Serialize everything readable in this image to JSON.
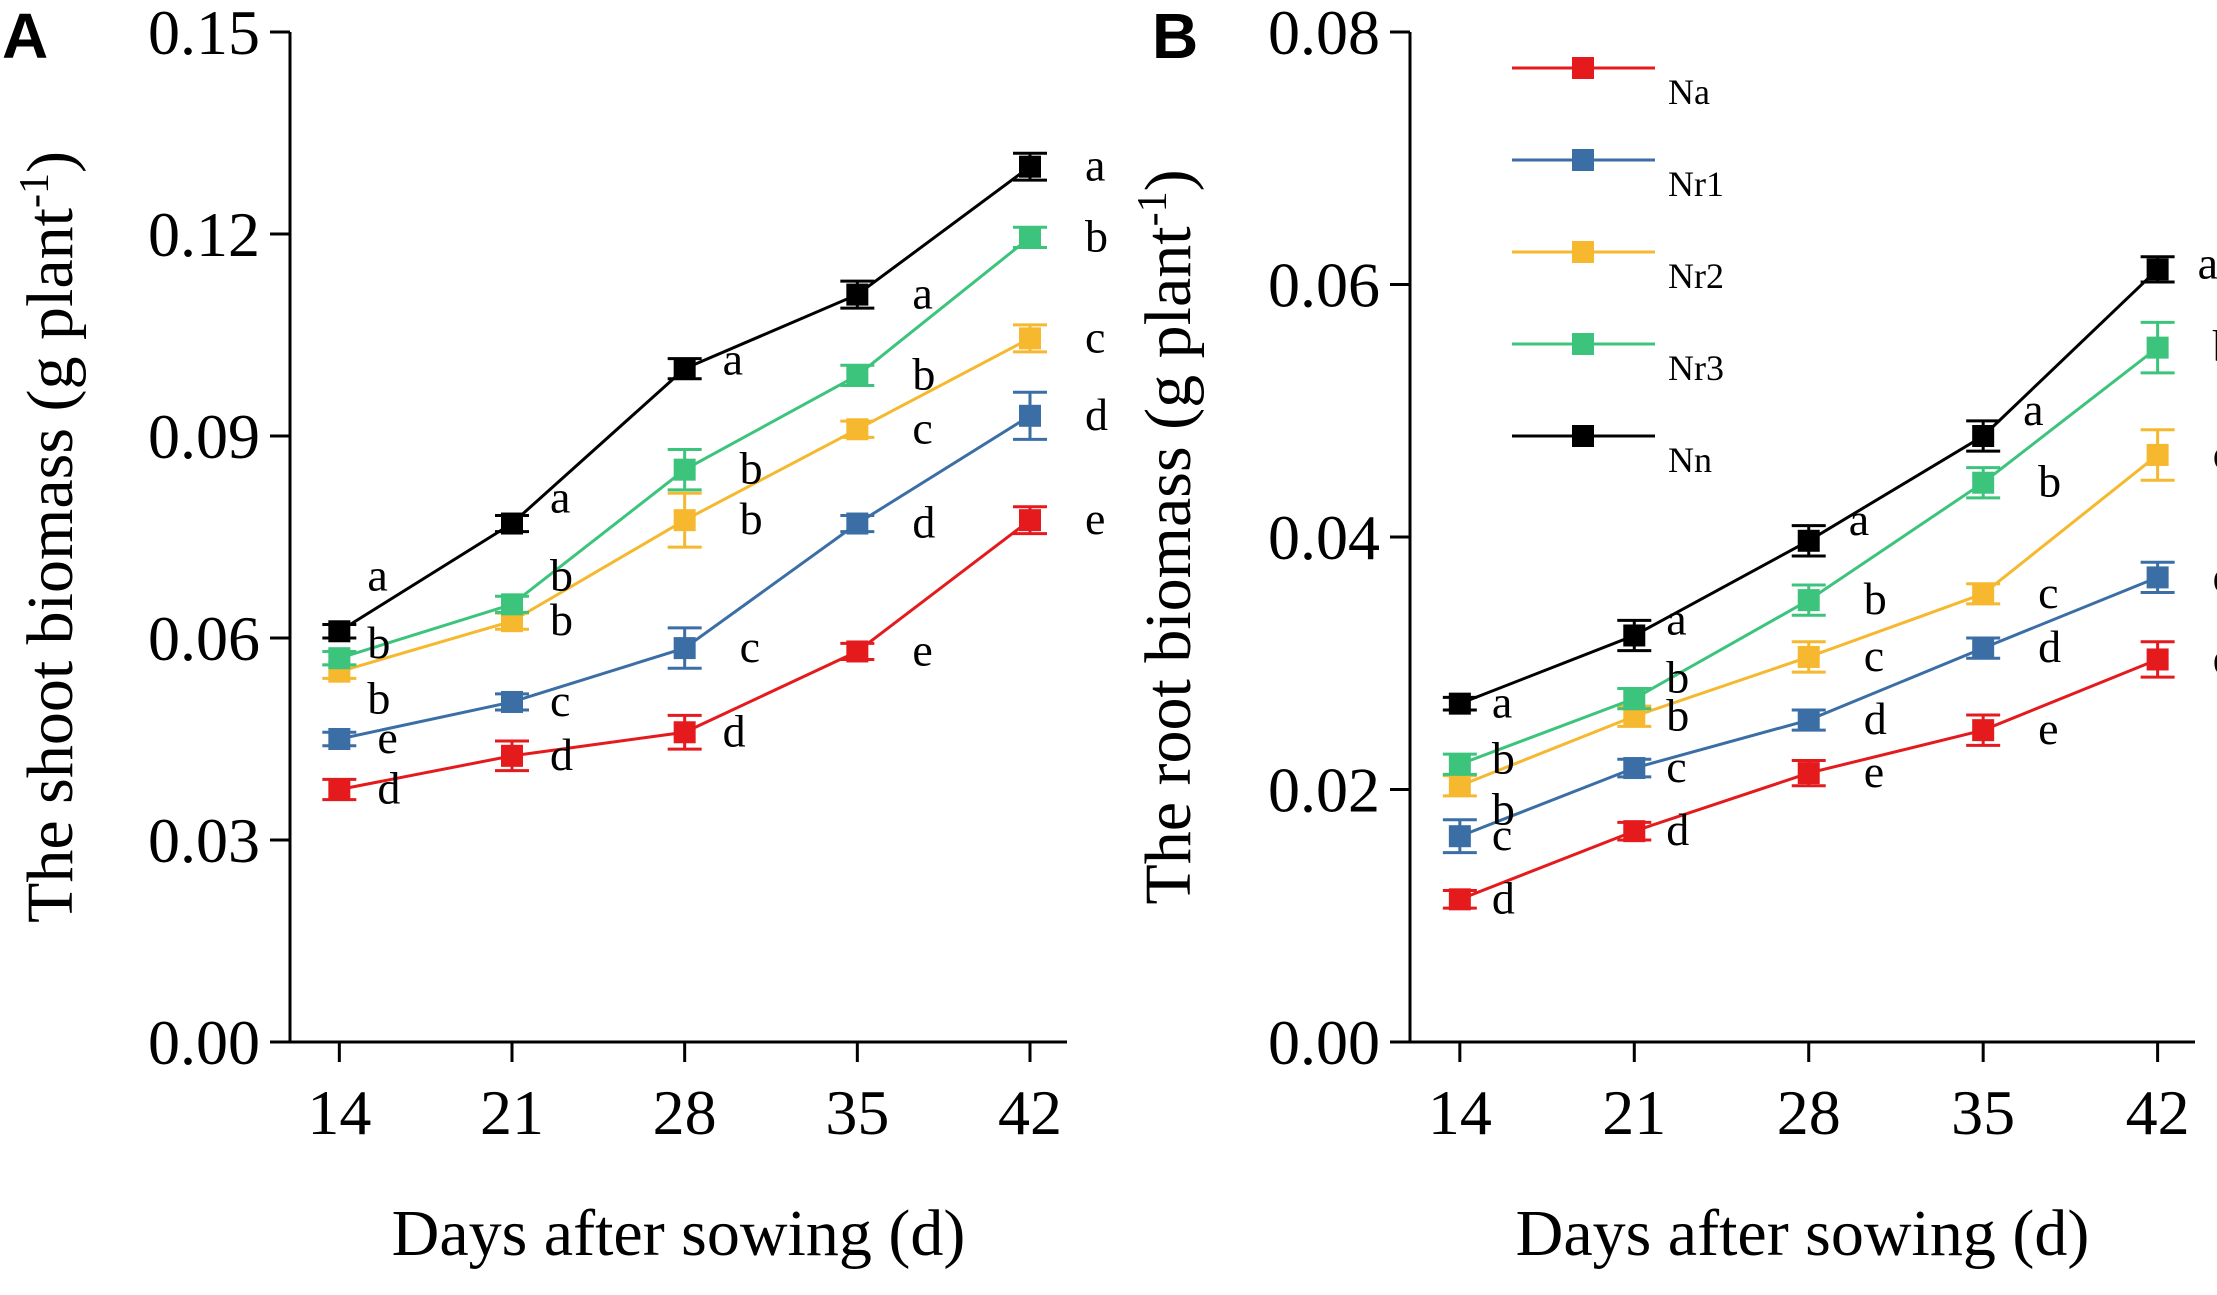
{
  "chart_data": [
    {
      "type": "line",
      "panel": "A",
      "title": "",
      "xlabel": "Days after sowing (d)",
      "ylabel": "The shoot biomass (g plant",
      "ylabel_sup": "-1",
      "ylabel_tail": ")",
      "x": [
        14,
        21,
        28,
        35,
        42
      ],
      "x_tick_labels": [
        "14",
        "21",
        "28",
        "35",
        "42"
      ],
      "xlim": [
        12,
        43.5
      ],
      "ylim": [
        0,
        0.15
      ],
      "y_ticks": [
        0,
        0.03,
        0.06,
        0.09,
        0.12,
        0.15
      ],
      "y_tick_labels": [
        "0.00",
        "0.03",
        "0.06",
        "0.09",
        "0.12",
        "0.15"
      ],
      "grid": false,
      "series": [
        {
          "name": "Na",
          "color": "#e41a1c",
          "values": [
            0.0375,
            0.0425,
            0.046,
            0.058,
            0.0775
          ],
          "errors": [
            0.0015,
            0.0022,
            0.0025,
            0.0012,
            0.002
          ],
          "sig": [
            "d",
            "d",
            "d",
            "e",
            "e"
          ],
          "sig_dx": [
            38,
            38,
            38,
            55,
            55
          ],
          "sig_dy": [
            0,
            0,
            0,
            0,
            0
          ]
        },
        {
          "name": "Nr1",
          "color": "#3a6ea5",
          "values": [
            0.045,
            0.0505,
            0.0585,
            0.077,
            0.093
          ],
          "errors": [
            0.001,
            0.0012,
            0.003,
            0.0012,
            0.0035
          ],
          "sig": [
            "e",
            "c",
            "c",
            "d",
            "d"
          ],
          "sig_dx": [
            38,
            38,
            55,
            55,
            55
          ],
          "sig_dy": [
            0,
            0,
            0,
            0,
            0
          ]
        },
        {
          "name": "Nr2",
          "color": "#f5b82e",
          "values": [
            0.055,
            0.0625,
            0.0775,
            0.091,
            0.1045
          ],
          "errors": [
            0.001,
            0.0012,
            0.004,
            0.0012,
            0.002
          ],
          "sig": [
            "b",
            "b",
            "b",
            "c",
            "c"
          ],
          "sig_dx": [
            28,
            38,
            55,
            55,
            55
          ],
          "sig_dy": [
            28,
            0,
            0,
            0,
            0
          ]
        },
        {
          "name": "Nr3",
          "color": "#3cc47c",
          "values": [
            0.057,
            0.065,
            0.085,
            0.099,
            0.1195
          ],
          "errors": [
            0.001,
            0.0012,
            0.003,
            0.0015,
            0.0015
          ],
          "sig": [
            "b",
            "b",
            "b",
            "b",
            "b"
          ],
          "sig_dx": [
            28,
            38,
            55,
            55,
            55
          ],
          "sig_dy": [
            -14,
            -28,
            0,
            0,
            0
          ]
        },
        {
          "name": "Nn",
          "color": "#000000",
          "values": [
            0.061,
            0.077,
            0.1,
            0.111,
            0.13
          ],
          "errors": [
            0.001,
            0.0012,
            0.0015,
            0.002,
            0.002
          ],
          "sig": [
            "a",
            "a",
            "a",
            "a",
            "a"
          ],
          "sig_dx": [
            28,
            38,
            38,
            55,
            55
          ],
          "sig_dy": [
            -55,
            -25,
            -8,
            0,
            0
          ]
        }
      ]
    },
    {
      "type": "line",
      "panel": "B",
      "title": "",
      "xlabel": "Days after sowing (d)",
      "ylabel": "The root biomass (g plant",
      "ylabel_sup": "-1",
      "ylabel_tail": ")",
      "x": [
        14,
        21,
        28,
        35,
        42
      ],
      "x_tick_labels": [
        "14",
        "21",
        "28",
        "35",
        "42"
      ],
      "xlim": [
        12,
        43.5
      ],
      "ylim": [
        0,
        0.08
      ],
      "y_ticks": [
        0,
        0.02,
        0.04,
        0.06,
        0.08
      ],
      "y_tick_labels": [
        "0.00",
        "0.02",
        "0.04",
        "0.06",
        "0.08"
      ],
      "grid": false,
      "legend_position": "upper-left",
      "series": [
        {
          "name": "Na",
          "color": "#e41a1c",
          "values": [
            0.0113,
            0.0167,
            0.0213,
            0.0247,
            0.0303
          ],
          "errors": [
            0.0007,
            0.0007,
            0.001,
            0.0012,
            0.0014
          ],
          "sig": [
            "d",
            "d",
            "e",
            "e",
            "e"
          ],
          "sig_dx": [
            32,
            32,
            55,
            55,
            55
          ],
          "sig_dy": [
            0,
            0,
            0,
            0,
            0
          ]
        },
        {
          "name": "Nr1",
          "color": "#3a6ea5",
          "values": [
            0.0163,
            0.0217,
            0.0255,
            0.0312,
            0.0368
          ],
          "errors": [
            0.0013,
            0.0007,
            0.0008,
            0.0008,
            0.0012
          ],
          "sig": [
            "c",
            "c",
            "d",
            "d",
            "d"
          ],
          "sig_dx": [
            32,
            32,
            55,
            55,
            55
          ],
          "sig_dy": [
            0,
            0,
            0,
            0,
            0
          ]
        },
        {
          "name": "Nr2",
          "color": "#f5b82e",
          "values": [
            0.0203,
            0.0258,
            0.0305,
            0.0355,
            0.0465
          ],
          "errors": [
            0.0008,
            0.0008,
            0.0012,
            0.0008,
            0.002
          ],
          "sig": [
            "b",
            "b",
            "c",
            "c",
            "c"
          ],
          "sig_dx": [
            32,
            32,
            55,
            55,
            55
          ],
          "sig_dy": [
            25,
            0,
            0,
            0,
            0
          ]
        },
        {
          "name": "Nr3",
          "color": "#3cc47c",
          "values": [
            0.022,
            0.0272,
            0.035,
            0.0443,
            0.055
          ],
          "errors": [
            0.0008,
            0.0008,
            0.0012,
            0.0012,
            0.002
          ],
          "sig": [
            "b",
            "b",
            "b",
            "b",
            "b"
          ],
          "sig_dx": [
            32,
            32,
            55,
            55,
            55
          ],
          "sig_dy": [
            -5,
            -20,
            0,
            0,
            0
          ]
        },
        {
          "name": "Nn",
          "color": "#000000",
          "values": [
            0.0268,
            0.0322,
            0.0397,
            0.048,
            0.0612
          ],
          "errors": [
            0.0005,
            0.0012,
            0.0012,
            0.0012,
            0.001
          ],
          "sig": [
            "a",
            "a",
            "a",
            "a",
            "a"
          ],
          "sig_dx": [
            32,
            32,
            40,
            40,
            40
          ],
          "sig_dy": [
            0,
            -15,
            -20,
            -25,
            -5
          ]
        }
      ]
    }
  ]
}
